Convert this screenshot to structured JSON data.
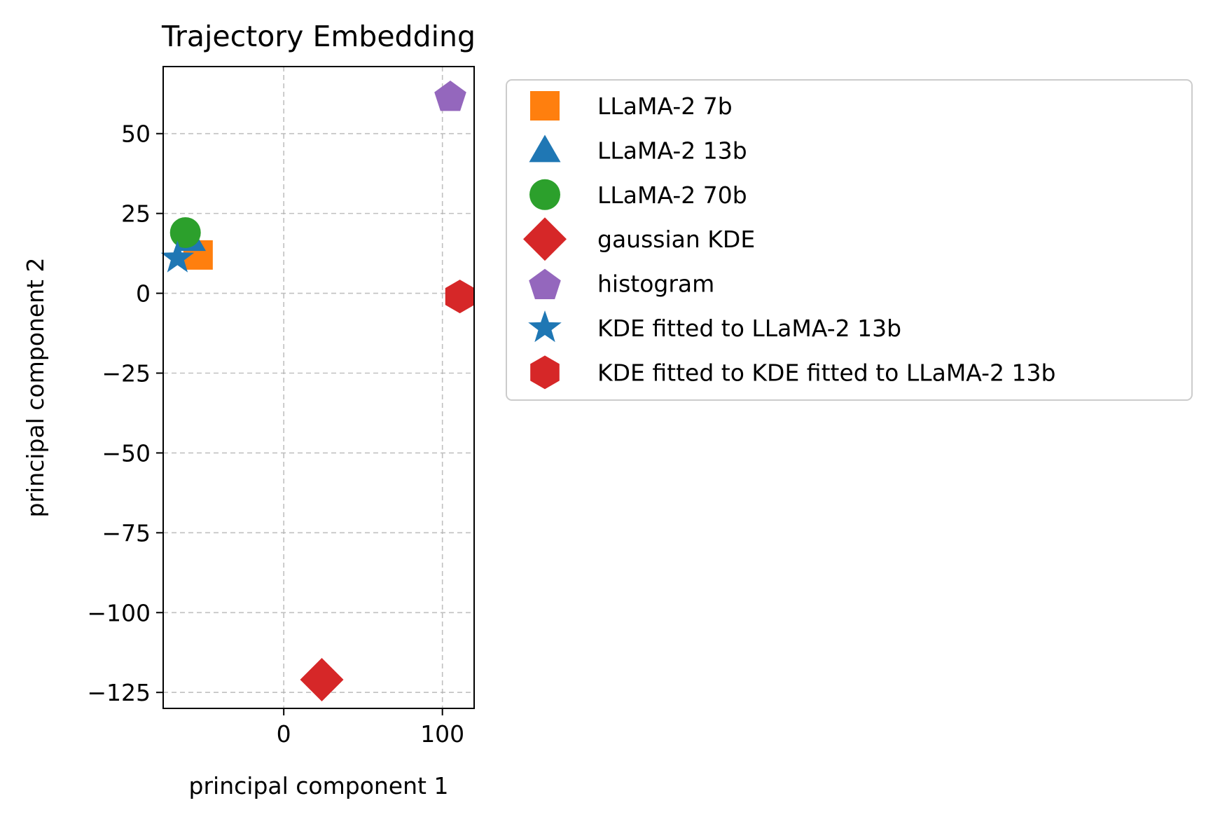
{
  "chart_data": {
    "type": "scatter",
    "title": "Trajectory Embedding",
    "xlabel": "principal component 1",
    "ylabel": "principal component 2",
    "xlim": [
      -76,
      120
    ],
    "ylim": [
      -130,
      71
    ],
    "xticks": [
      0,
      100
    ],
    "xtick_labels": [
      "0",
      "100"
    ],
    "yticks": [
      50,
      25,
      0,
      -25,
      -50,
      -75,
      -100,
      -125
    ],
    "ytick_labels": [
      "50",
      "25",
      "0",
      "−25",
      "−50",
      "−75",
      "−100",
      "−125"
    ],
    "grid": true,
    "legend_position": "outside-right-top",
    "series": [
      {
        "name": "LLaMA-2 7b",
        "marker": "square",
        "color": "#ff7f0e",
        "x": -54,
        "y": 12
      },
      {
        "name": "LLaMA-2 13b",
        "marker": "triangle",
        "color": "#1f77b4",
        "x": -59,
        "y": 17
      },
      {
        "name": "LLaMA-2 70b",
        "marker": "circle",
        "color": "#2ca02c",
        "x": -62,
        "y": 19
      },
      {
        "name": "gaussian KDE",
        "marker": "diamond",
        "color": "#d62728",
        "x": 24,
        "y": -121
      },
      {
        "name": "histogram",
        "marker": "pentagon",
        "color": "#9467bd",
        "x": 105,
        "y": 62
      },
      {
        "name": "KDE fitted to LLaMA-2 13b",
        "marker": "star",
        "color": "#1f77b4",
        "x": -67,
        "y": 11
      },
      {
        "name": "KDE fitted to KDE fitted to LLaMA-2 13b",
        "marker": "hexagon",
        "color": "#d62728",
        "x": 111,
        "y": -1
      }
    ]
  }
}
